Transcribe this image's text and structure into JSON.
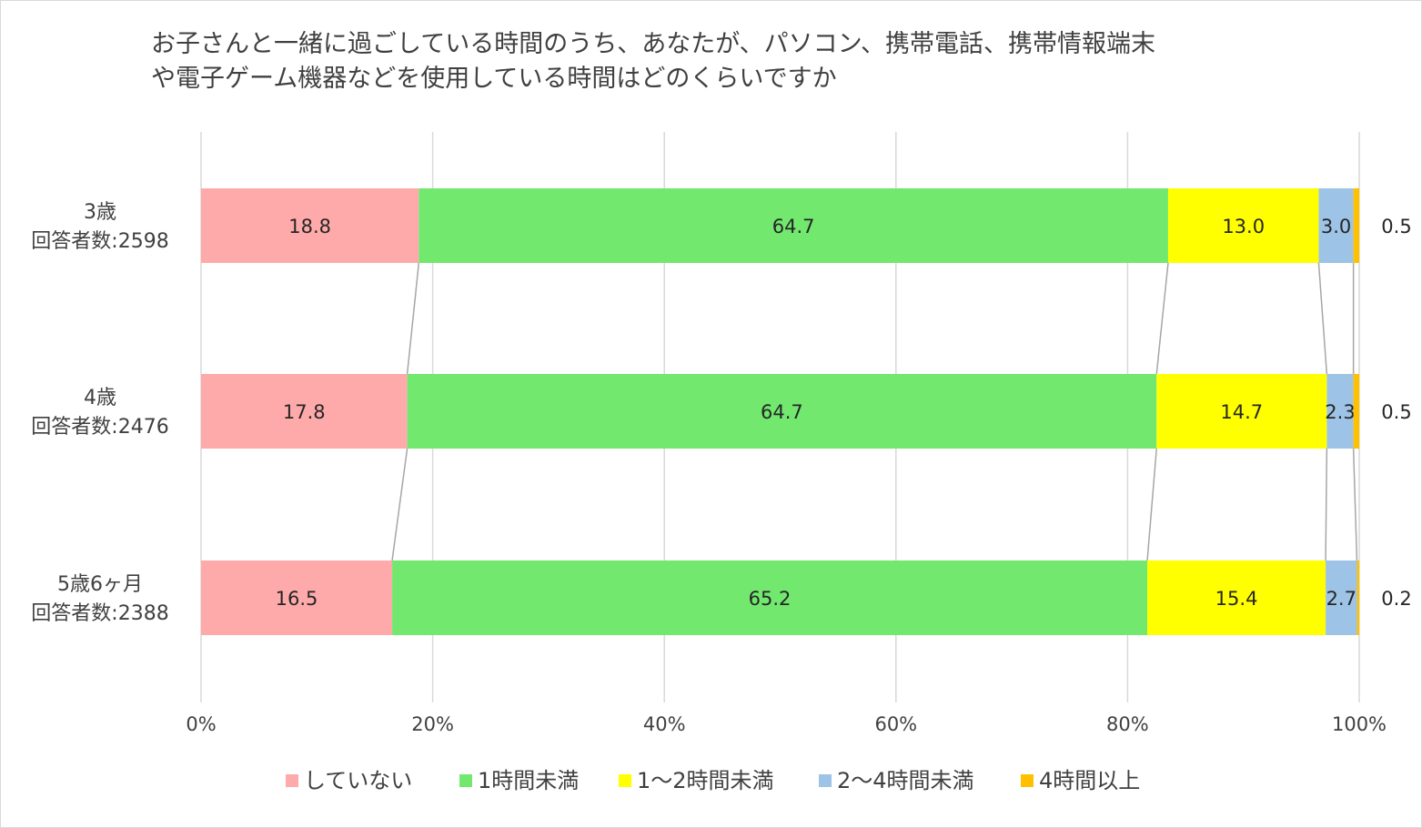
{
  "chart_data": {
    "type": "bar",
    "orientation": "horizontal",
    "stacked": "100%",
    "title_lines": [
      "お子さんと一緒に過ごしている時間のうち、あなたが、パソコン、携帯電話、携帯情報端末",
      "や電子ゲーム機器などを使用している時間はどのくらいですか"
    ],
    "categories": [
      [
        "3歳",
        "回答者数:2598"
      ],
      [
        "4歳",
        "回答者数:2476"
      ],
      [
        "5歳6ヶ月",
        "回答者数:2388"
      ]
    ],
    "series": [
      {
        "name": "していない",
        "color": "#ffaaaa",
        "values": [
          18.8,
          17.8,
          16.5
        ],
        "labels": [
          "18.8",
          "17.8",
          "16.5"
        ]
      },
      {
        "name": "1時間未満",
        "color": "#72e86f",
        "values": [
          64.7,
          64.7,
          65.2
        ],
        "labels": [
          "64.7",
          "64.7",
          "65.2"
        ]
      },
      {
        "name": "1〜2時間未満",
        "color": "#ffff00",
        "values": [
          13.0,
          14.7,
          15.4
        ],
        "labels": [
          "13.0",
          "14.7",
          "15.4"
        ]
      },
      {
        "name": "2〜4時間未満",
        "color": "#9dc3e6",
        "values": [
          3.0,
          2.3,
          2.7
        ],
        "labels": [
          "3.0",
          "2.3",
          "2.7"
        ]
      },
      {
        "name": "4時間以上",
        "color": "#ffc000",
        "values": [
          0.5,
          0.5,
          0.2
        ],
        "labels": [
          "0.5",
          "0.5",
          "0.2"
        ]
      }
    ],
    "xlim": [
      0,
      100
    ],
    "xticks": [
      "0%",
      "20%",
      "40%",
      "60%",
      "80%",
      "100%"
    ],
    "grid": true,
    "series_lines": true,
    "legend_position": "bottom"
  }
}
